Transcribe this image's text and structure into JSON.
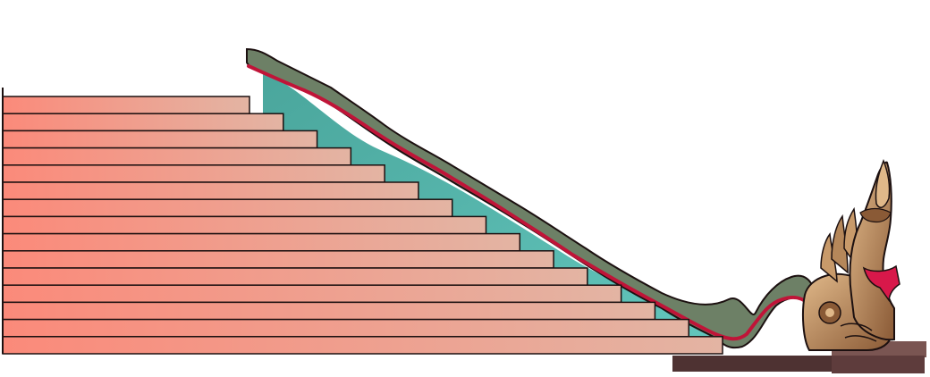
{
  "illustration": {
    "subject": "naga-staircase",
    "step_count": 15,
    "colors": {
      "step_light": "#e3b4a3",
      "step_dark": "#fb8a7a",
      "step_outline": "#1c1010",
      "railing_body": "#6d8066",
      "railing_body_dark": "#4e5f4a",
      "railing_stripe": "#c01438",
      "railing_fill": "#63c6bd",
      "railing_fill_dark": "#4aa69c",
      "base_platform": "#4e3232",
      "base_platform_top": "#7a5552",
      "naga_gold": "#c89a6a",
      "naga_gold_dark": "#8a5a36",
      "naga_scarf": "#d8184a"
    },
    "icons": {
      "naga_head": "naga-serpent-icon"
    }
  }
}
